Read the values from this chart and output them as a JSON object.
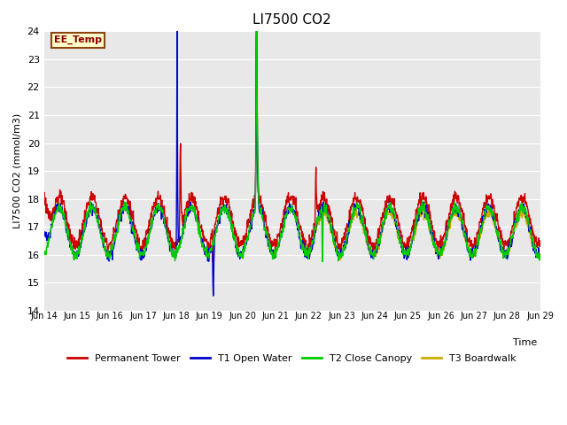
{
  "title": "LI7500 CO2",
  "ylabel": "LI7500 CO2 (mmol/m3)",
  "xlabel": "Time",
  "ylim": [
    14.0,
    24.0
  ],
  "yticks": [
    14.0,
    15.0,
    16.0,
    17.0,
    18.0,
    19.0,
    20.0,
    21.0,
    22.0,
    23.0,
    24.0
  ],
  "xlim": [
    0,
    15
  ],
  "xtick_labels": [
    "Jun 14",
    "Jun 15",
    "Jun 16",
    "Jun 17",
    "Jun 18",
    "Jun 19",
    "Jun 20",
    "Jun 21",
    "Jun 22",
    "Jun 23",
    "Jun 24",
    "Jun 25",
    "Jun 26",
    "Jun 27",
    "Jun 28",
    "Jun 29"
  ],
  "annotation_text": "EE_Temp",
  "annotation_box_facecolor": "#FFFFCC",
  "annotation_box_edgecolor": "#8B4513",
  "annotation_text_color": "#8B0000",
  "background_color": "#E8E8E8",
  "colors": {
    "permanent_tower": "#CC0000",
    "t1_open_water": "#0000CC",
    "t2_close_canopy": "#00CC00",
    "t3_boardwalk": "#CCAA00"
  },
  "legend_labels": [
    "Permanent Tower",
    "T1 Open Water",
    "T2 Close Canopy",
    "T3 Boardwalk"
  ]
}
